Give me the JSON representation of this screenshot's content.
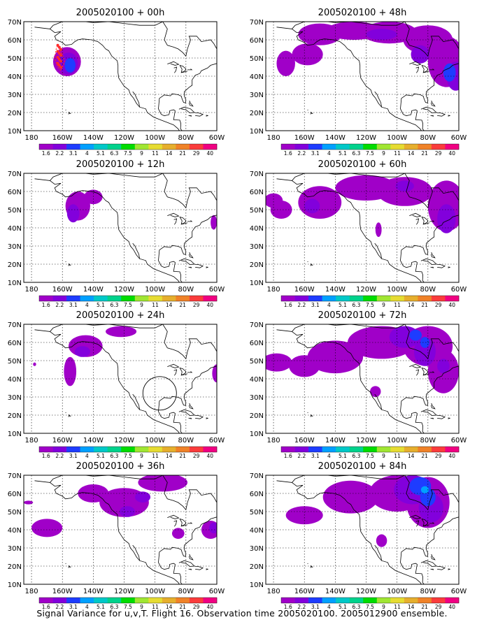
{
  "colors": {
    "levels": [
      "#a000c8",
      "#8200dc",
      "#1e3cff",
      "#00a0ff",
      "#00c8c8",
      "#00d28c",
      "#00dc00",
      "#a0e632",
      "#e6dc32",
      "#e6af2d",
      "#f08228",
      "#fa3c3c",
      "#f00082"
    ],
    "land": "#000000",
    "grid": "#000000"
  },
  "colorbar": {
    "labels": [
      "1.6",
      "2.2",
      "3.1",
      "4",
      "5.1",
      "6.3",
      "7.5",
      "9",
      "11",
      "14",
      "21",
      "29",
      "40"
    ]
  },
  "axes": {
    "lat_labels": [
      "70N",
      "60N",
      "50N",
      "40N",
      "30N",
      "20N",
      "10N"
    ],
    "lon_labels": [
      "180",
      "160W",
      "140W",
      "120W",
      "100W",
      "80W",
      "60W"
    ]
  },
  "chart_data": [
    {
      "type": "heatmap",
      "title": "2005020100 + 00h",
      "lon_range": [
        -185,
        -60
      ],
      "lat_range": [
        10,
        70
      ],
      "grid": true
    },
    {
      "type": "heatmap",
      "title": "2005020100 + 48h",
      "lon_range": [
        -185,
        -60
      ],
      "lat_range": [
        10,
        70
      ],
      "grid": true
    },
    {
      "type": "heatmap",
      "title": "2005020100 + 12h",
      "lon_range": [
        -185,
        -60
      ],
      "lat_range": [
        10,
        70
      ],
      "grid": true
    },
    {
      "type": "heatmap",
      "title": "2005020100 + 60h",
      "lon_range": [
        -185,
        -60
      ],
      "lat_range": [
        10,
        70
      ],
      "grid": true
    },
    {
      "type": "heatmap",
      "title": "2005020100 + 24h",
      "lon_range": [
        -185,
        -60
      ],
      "lat_range": [
        10,
        70
      ],
      "grid": true
    },
    {
      "type": "heatmap",
      "title": "2005020100 + 72h",
      "lon_range": [
        -185,
        -60
      ],
      "lat_range": [
        10,
        70
      ],
      "grid": true
    },
    {
      "type": "heatmap",
      "title": "2005020100 + 36h",
      "lon_range": [
        -185,
        -60
      ],
      "lat_range": [
        10,
        70
      ],
      "grid": true
    },
    {
      "type": "heatmap",
      "title": "2005020100 + 84h",
      "lon_range": [
        -185,
        -60
      ],
      "lat_range": [
        10,
        70
      ],
      "grid": true
    }
  ],
  "caption": "Signal Variance for u,v,T. Flight 16. Observation time 2005020100. 2005012900 ensemble."
}
